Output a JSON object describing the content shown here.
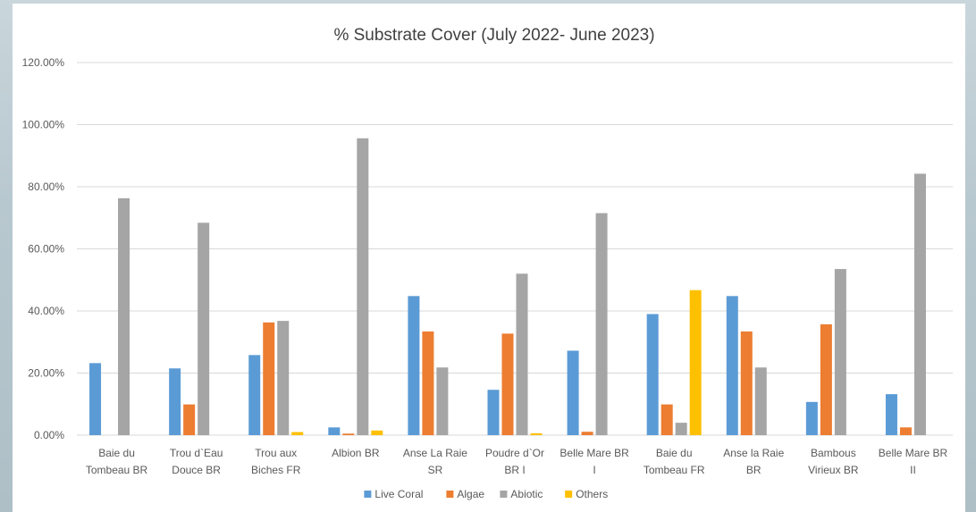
{
  "chart_data": {
    "type": "bar",
    "title": "% Substrate Cover (July 2022- June 2023)",
    "xlabel": "",
    "ylabel": "",
    "ylim": [
      0,
      1.2
    ],
    "yticks": [
      "0.00%",
      "20.00%",
      "40.00%",
      "60.00%",
      "80.00%",
      "100.00%",
      "120.00%"
    ],
    "grid": true,
    "legend_position": "bottom",
    "categories": [
      [
        "Baie du",
        "Tombeau BR"
      ],
      [
        "Trou d`Eau",
        "Douce BR"
      ],
      [
        "Trou aux",
        "Biches FR"
      ],
      [
        "Albion BR"
      ],
      [
        "Anse La Raie",
        "SR"
      ],
      [
        "Poudre d`Or",
        "BR I"
      ],
      [
        "Belle Mare BR",
        "I"
      ],
      [
        "Baie du",
        "Tombeau FR"
      ],
      [
        "Anse la Raie",
        "BR"
      ],
      [
        "Bambous",
        "Virieux BR"
      ],
      [
        "Belle Mare BR",
        "II"
      ]
    ],
    "series": [
      {
        "name": "Live Coral",
        "color": "#5B9BD5",
        "values": [
          0.232,
          0.215,
          0.258,
          0.025,
          0.448,
          0.146,
          0.272,
          0.39,
          0.448,
          0.107,
          0.132
        ]
      },
      {
        "name": "Algae",
        "color": "#ED7D31",
        "values": [
          0.0,
          0.099,
          0.363,
          0.005,
          0.334,
          0.327,
          0.011,
          0.099,
          0.334,
          0.357,
          0.025
        ]
      },
      {
        "name": "Abiotic",
        "color": "#A5A5A5",
        "values": [
          0.763,
          0.684,
          0.368,
          0.956,
          0.218,
          0.52,
          0.715,
          0.04,
          0.218,
          0.535,
          0.842
        ]
      },
      {
        "name": "Others",
        "color": "#FFC000",
        "values": [
          0.0,
          0.0,
          0.01,
          0.015,
          0.0,
          0.006,
          0.0,
          0.467,
          0.0,
          0.0,
          0.0
        ]
      }
    ]
  }
}
